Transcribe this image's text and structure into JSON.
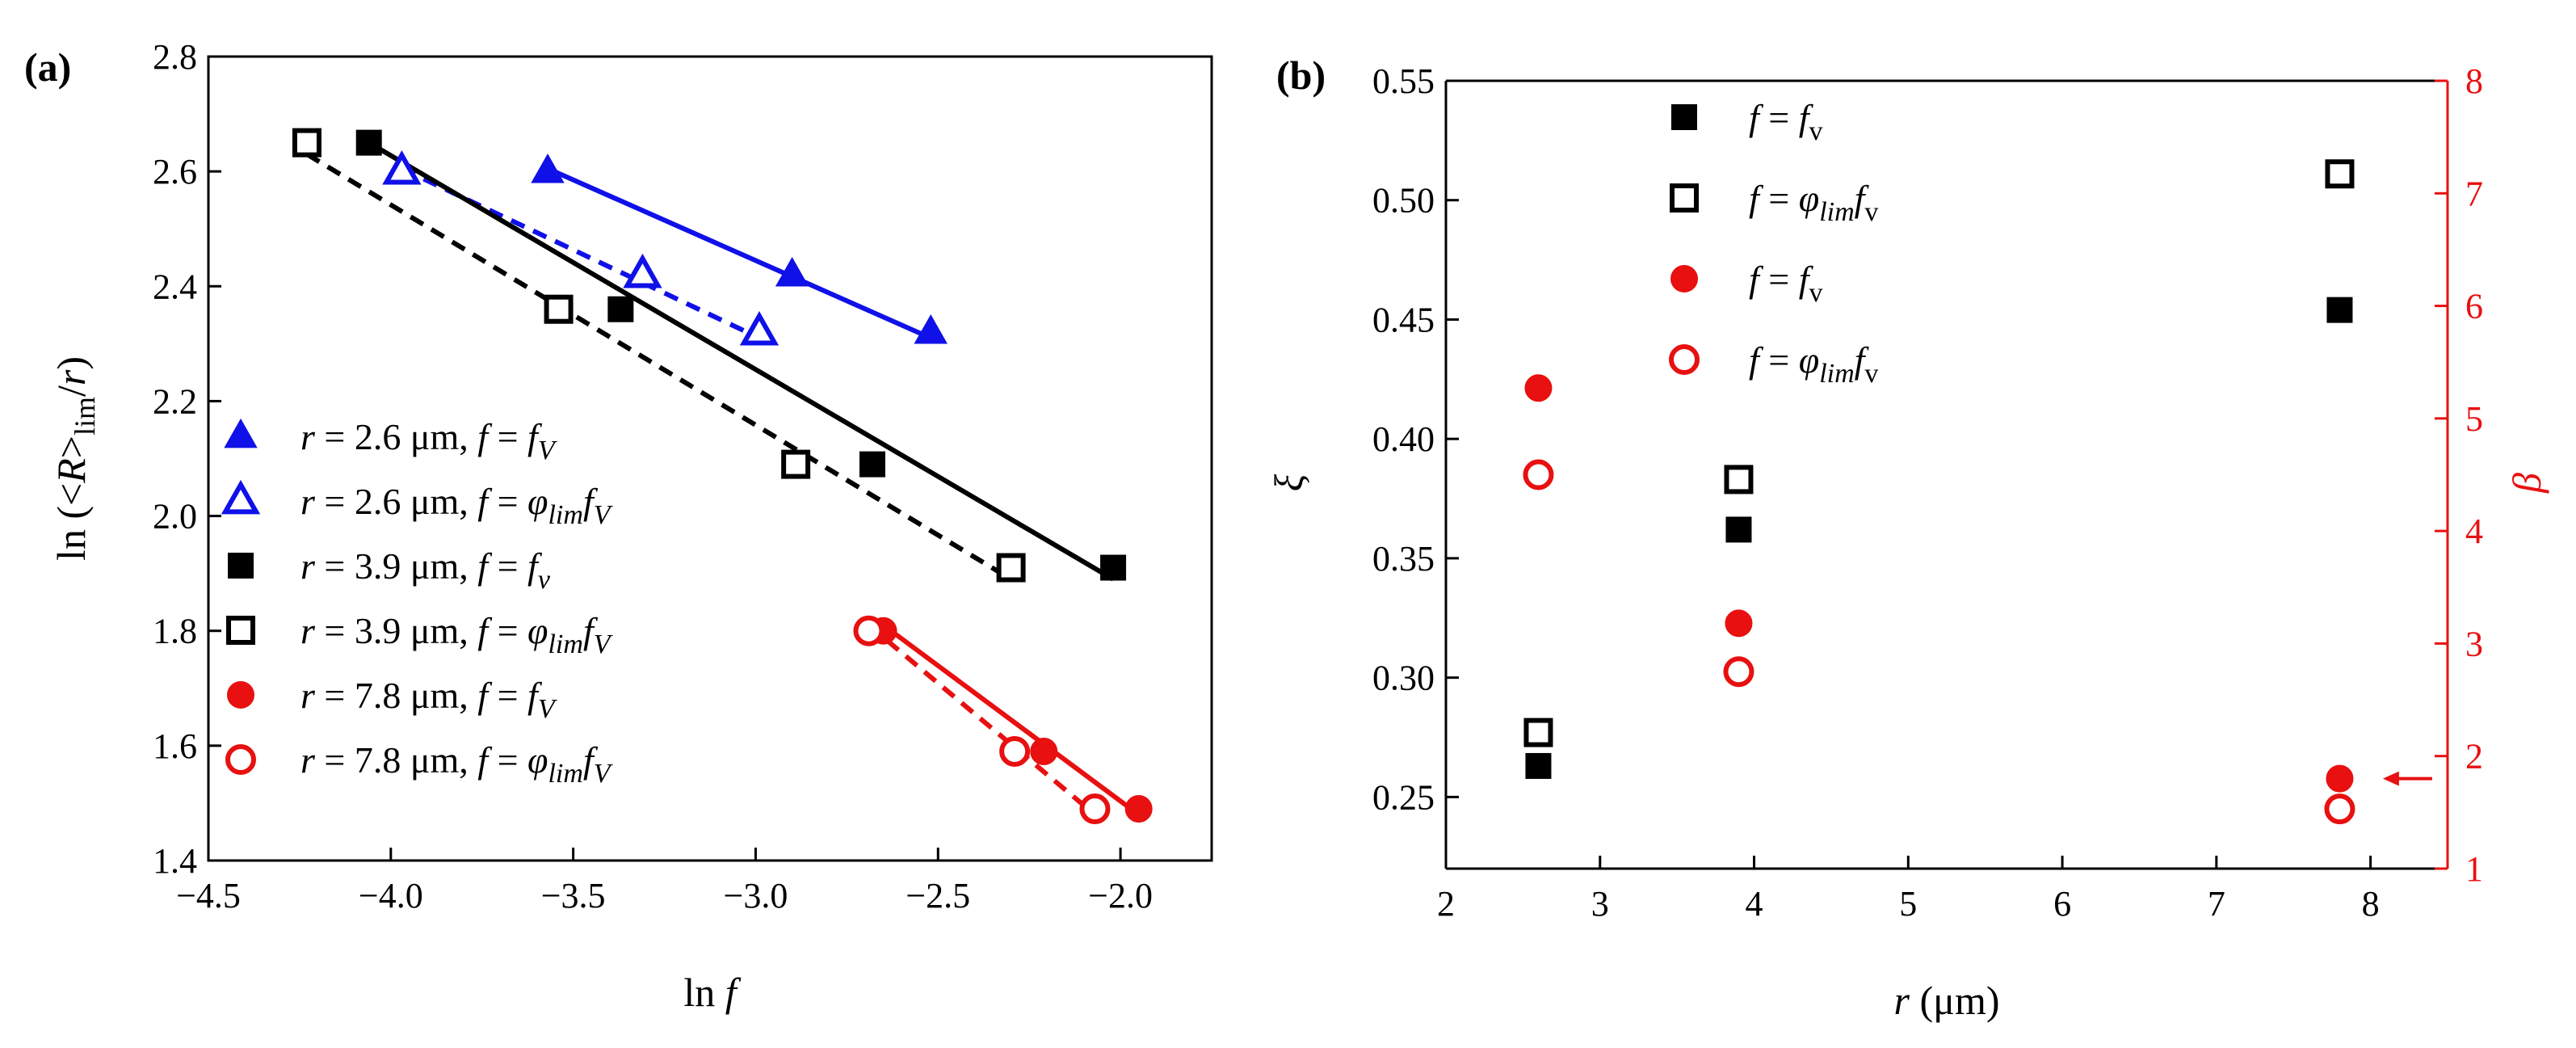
{
  "chart_data": [
    {
      "panel_label": "(a)",
      "type": "scatter",
      "title": "",
      "xlabel": {
        "pre": "ln ",
        "var": "f"
      },
      "ylabel": {
        "pre": "ln (<",
        "var": "R",
        "post": ">",
        "sub": "lim",
        "tail": "/",
        "var2": "r",
        "end": ")"
      },
      "xlim": [
        -4.5,
        -1.75
      ],
      "ylim": [
        1.4,
        2.8
      ],
      "xticks": [
        -4.5,
        -4.0,
        -3.5,
        -3.0,
        -2.5,
        -2.0
      ],
      "xtick_labels": [
        "−4.5",
        "−4.0",
        "−3.5",
        "−3.0",
        "−2.5",
        "−2.0"
      ],
      "yticks": [
        1.4,
        1.6,
        1.8,
        2.0,
        2.2,
        2.4,
        2.6,
        2.8
      ],
      "ytick_labels": [
        "1.4",
        "1.6",
        "1.8",
        "2.0",
        "2.2",
        "2.4",
        "2.6",
        "2.8"
      ],
      "legend_position": "bottom-left",
      "series": [
        {
          "name": "r = 2.6 μm, f = fV",
          "r": "2.6",
          "label_f": "f",
          "label_rhs": "fV",
          "marker": "triangle",
          "filled": true,
          "color": "#1010e8",
          "line": "solid",
          "x": [
            -3.57,
            -2.9,
            -2.52
          ],
          "y": [
            2.6,
            2.42,
            2.32
          ],
          "fit": {
            "x": [
              -3.57,
              -2.52
            ],
            "y": [
              2.605,
              2.31
            ]
          }
        },
        {
          "name": "r = 2.6 μm, f = φlim fV",
          "r": "2.6",
          "label_f": "f",
          "label_rhs": "φlim fV",
          "marker": "triangle",
          "filled": false,
          "color": "#1010e8",
          "line": "dashed",
          "x": [
            -3.97,
            -3.31,
            -2.99
          ],
          "y": [
            2.6,
            2.42,
            2.32
          ],
          "fit": {
            "x": [
              -3.97,
              -2.99
            ],
            "y": [
              2.605,
              2.31
            ]
          }
        },
        {
          "name": "r = 3.9 μm, f = fv",
          "r": "3.9",
          "label_f": "f",
          "label_rhs": "fv",
          "marker": "square",
          "filled": true,
          "color": "#000000",
          "line": "solid",
          "x": [
            -4.06,
            -3.37,
            -2.68,
            -2.02
          ],
          "y": [
            2.65,
            2.36,
            2.09,
            1.91
          ],
          "fit": {
            "x": [
              -4.06,
              -2.02
            ],
            "y": [
              2.65,
              1.89
            ]
          }
        },
        {
          "name": "r = 3.9 μm, f = φlim fV",
          "r": "3.9",
          "label_f": "f",
          "label_rhs": "φlim fV",
          "marker": "square",
          "filled": false,
          "color": "#000000",
          "line": "dashed",
          "x": [
            -4.23,
            -3.54,
            -2.89,
            -2.3
          ],
          "y": [
            2.65,
            2.36,
            2.09,
            1.91
          ],
          "fit": {
            "x": [
              -4.23,
              -2.3
            ],
            "y": [
              2.63,
              1.89
            ]
          }
        },
        {
          "name": "r = 7.8 μm, f = fV",
          "r": "7.8",
          "label_f": "f",
          "label_rhs": "fV",
          "marker": "circle",
          "filled": true,
          "color": "#e81010",
          "line": "solid",
          "x": [
            -2.65,
            -2.21,
            -1.95
          ],
          "y": [
            1.8,
            1.59,
            1.49
          ],
          "fit": {
            "x": [
              -2.65,
              -1.95
            ],
            "y": [
              1.81,
              1.48
            ]
          }
        },
        {
          "name": "r = 7.8 μm, f = φlim fV",
          "r": "7.8",
          "label_f": "f",
          "label_rhs": "φlim fV",
          "marker": "circle",
          "filled": false,
          "color": "#e81010",
          "line": "dashed",
          "x": [
            -2.69,
            -2.29,
            -2.07
          ],
          "y": [
            1.8,
            1.59,
            1.49
          ],
          "fit": {
            "x": [
              -2.69,
              -2.07
            ],
            "y": [
              1.81,
              1.48
            ]
          }
        }
      ]
    },
    {
      "panel_label": "(b)",
      "type": "scatter",
      "title": "",
      "xlabel": {
        "var": "r",
        "post": " (μm)"
      },
      "ylabel_left": "ξ",
      "ylabel_right": "β",
      "xlim": [
        2,
        8.5
      ],
      "ylim_left": [
        0.22,
        0.55
      ],
      "ylim_right": [
        1,
        8
      ],
      "xticks": [
        2,
        3,
        4,
        5,
        6,
        7,
        8
      ],
      "xtick_labels": [
        "2",
        "3",
        "4",
        "5",
        "6",
        "7",
        "8"
      ],
      "yticks_left": [
        0.25,
        0.3,
        0.35,
        0.4,
        0.45,
        0.5,
        0.55
      ],
      "ytick_labels_left": [
        "0.25",
        "0.30",
        "0.35",
        "0.40",
        "0.45",
        "0.50",
        "0.55"
      ],
      "yticks_right": [
        1,
        2,
        3,
        4,
        5,
        6,
        7,
        8
      ],
      "ytick_labels_right": [
        "1",
        "2",
        "3",
        "4",
        "5",
        "6",
        "7",
        "8"
      ],
      "right_axis_color": "#e81010",
      "legend_position": "top-center",
      "series": [
        {
          "name": "f = fv",
          "label_f": "f",
          "label_rhs": "fv",
          "axis": "left",
          "marker": "square",
          "filled": true,
          "color": "#000000",
          "x": [
            2.6,
            3.9,
            7.8
          ],
          "y": [
            0.263,
            0.362,
            0.454
          ]
        },
        {
          "name": "f = φlim fv",
          "label_f": "f",
          "label_rhs": "φlim fv",
          "axis": "left",
          "marker": "square",
          "filled": false,
          "color": "#000000",
          "x": [
            2.6,
            3.9,
            7.8
          ],
          "y": [
            0.277,
            0.383,
            0.511
          ]
        },
        {
          "name": "f = fv",
          "label_f": "f",
          "label_rhs": "fv",
          "axis": "right",
          "marker": "circle",
          "filled": true,
          "color": "#e81010",
          "x": [
            2.6,
            3.9,
            7.8
          ],
          "y": [
            5.27,
            3.18,
            1.8
          ]
        },
        {
          "name": "f = φlim fv",
          "label_f": "f",
          "label_rhs": "φlim fv",
          "axis": "right",
          "marker": "circle",
          "filled": false,
          "color": "#e81010",
          "x": [
            2.6,
            3.9,
            7.8
          ],
          "y": [
            4.5,
            2.75,
            1.53
          ]
        }
      ],
      "annotation": {
        "type": "arrow",
        "x_from": 8.4,
        "x_to": 8.08,
        "y": 1.8,
        "axis": "right",
        "color": "#e81010"
      }
    }
  ]
}
